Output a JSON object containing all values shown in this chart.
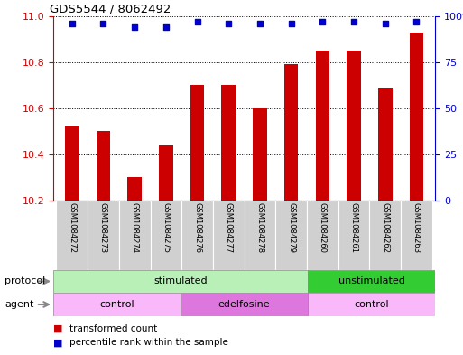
{
  "title": "GDS5544 / 8062492",
  "samples": [
    "GSM1084272",
    "GSM1084273",
    "GSM1084274",
    "GSM1084275",
    "GSM1084276",
    "GSM1084277",
    "GSM1084278",
    "GSM1084279",
    "GSM1084260",
    "GSM1084261",
    "GSM1084262",
    "GSM1084263"
  ],
  "bar_values": [
    10.52,
    10.5,
    10.3,
    10.44,
    10.7,
    10.7,
    10.6,
    10.79,
    10.85,
    10.85,
    10.69,
    10.93
  ],
  "dot_values": [
    96,
    96,
    94,
    94,
    97,
    96,
    96,
    96,
    97,
    97,
    96,
    97
  ],
  "bar_color": "#cc0000",
  "dot_color": "#0000cc",
  "ylim_left": [
    10.2,
    11.0
  ],
  "ylim_right": [
    0,
    100
  ],
  "yticks_left": [
    10.2,
    10.4,
    10.6,
    10.8,
    11.0
  ],
  "yticks_right": [
    0,
    25,
    50,
    75,
    100
  ],
  "ytick_labels_right": [
    "0",
    "25",
    "50",
    "75",
    "100%"
  ],
  "protocol_groups": [
    {
      "label": "stimulated",
      "start": 0,
      "end": 8,
      "color": "#b8f0b8"
    },
    {
      "label": "unstimulated",
      "start": 8,
      "end": 12,
      "color": "#33cc33"
    }
  ],
  "agent_groups": [
    {
      "label": "control",
      "start": 0,
      "end": 4,
      "color": "#f9b8f9"
    },
    {
      "label": "edelfosine",
      "start": 4,
      "end": 8,
      "color": "#dd77dd"
    },
    {
      "label": "control",
      "start": 8,
      "end": 12,
      "color": "#f9b8f9"
    }
  ],
  "legend_bar_label": "transformed count",
  "legend_dot_label": "percentile rank within the sample",
  "protocol_label": "protocol",
  "agent_label": "agent",
  "bg_color": "#ffffff",
  "plot_bg_color": "#ffffff",
  "tick_color_left": "#cc0000",
  "tick_color_right": "#0000cc",
  "sample_box_color": "#d0d0d0",
  "figsize": [
    5.13,
    3.93
  ],
  "dpi": 100
}
